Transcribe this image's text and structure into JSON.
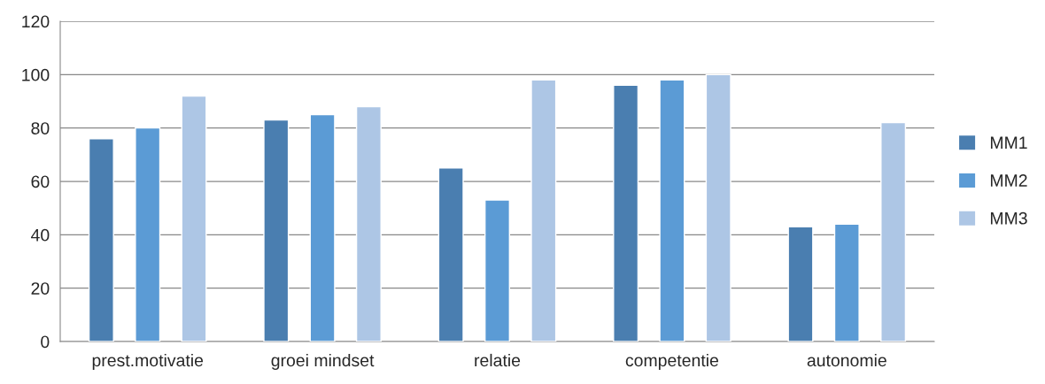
{
  "chart_data": {
    "type": "bar",
    "categories": [
      "prest.motivatie",
      "groei mindset",
      "relatie",
      "competentie",
      "autonomie"
    ],
    "series": [
      {
        "name": "MM1",
        "color": "#4a7eb0",
        "values": [
          76,
          83,
          65,
          96,
          43
        ]
      },
      {
        "name": "MM2",
        "color": "#5b9bd5",
        "values": [
          80,
          85,
          53,
          98,
          44
        ]
      },
      {
        "name": "MM3",
        "color": "#adc6e5",
        "values": [
          92,
          88,
          98,
          100,
          82
        ]
      }
    ],
    "ylim": [
      0,
      120
    ],
    "yticks": [
      0,
      20,
      40,
      60,
      80,
      100,
      120
    ],
    "grid": "y",
    "legend": "right"
  }
}
